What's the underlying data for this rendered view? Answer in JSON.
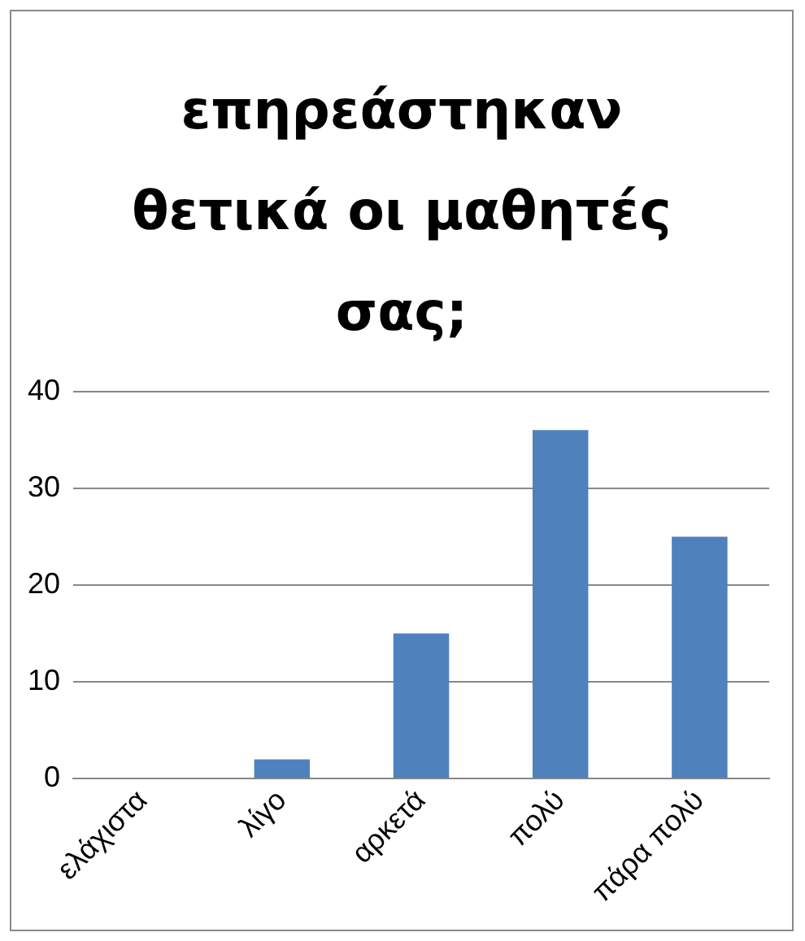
{
  "chart_data": {
    "type": "bar",
    "title": "επηρεάστηκαν θετικά οι μαθητές σας;",
    "categories": [
      "ελάχιστα",
      "λίγο",
      "αρκετά",
      "πολύ",
      "πάρα πολύ"
    ],
    "values": [
      0,
      2,
      15,
      36,
      25
    ],
    "color": "#4f81bd",
    "ylim": [
      0,
      40
    ],
    "yticks": [
      0,
      10,
      20,
      30,
      40
    ],
    "grid": "y",
    "legend": false
  }
}
